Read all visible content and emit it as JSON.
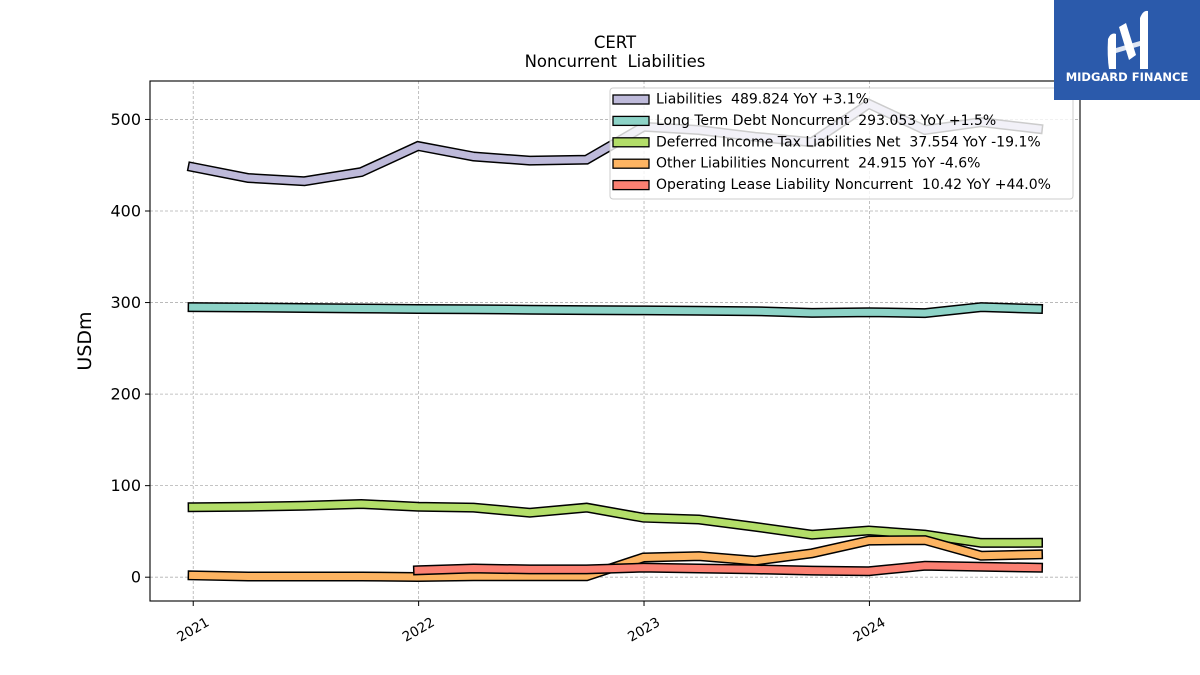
{
  "logo": {
    "wordmark": "MIDGARD FINANCE",
    "background_color": "#2b5aab"
  },
  "chart_data": {
    "type": "line",
    "title": "CERT",
    "subtitle": "Noncurrent  Liabilities",
    "xlabel": "",
    "ylabel": "USDm",
    "xlim": [
      "2020-10-23",
      "2024-12-07"
    ],
    "ylim": [
      -26,
      542
    ],
    "xticks": [
      "2021",
      "2022",
      "2023",
      "2024"
    ],
    "yticks": [
      0,
      100,
      200,
      300,
      400,
      500
    ],
    "grid": true,
    "legend": {
      "placement": "top-right",
      "yoy_label": "YoY"
    },
    "x": [
      "2020-12-31",
      "2021-03-31",
      "2021-06-30",
      "2021-09-30",
      "2021-12-31",
      "2022-03-31",
      "2022-06-30",
      "2022-09-30",
      "2022-12-31",
      "2023-03-31",
      "2023-06-30",
      "2023-09-30",
      "2023-12-31",
      "2024-03-31",
      "2024-06-30",
      "2024-09-30"
    ],
    "series": [
      {
        "name": "Liabilities",
        "latest": "489.824",
        "yoy": "+3.1%",
        "color": "#bebada",
        "values": [
          448.0,
          436.0,
          432.5,
          442.5,
          471.0,
          459.5,
          455.0,
          456.0,
          492.0,
          488.5,
          481.0,
          475.1,
          517.0,
          488.5,
          497.0,
          489.824
        ]
      },
      {
        "name": "Long Term Debt Noncurrent",
        "latest": "293.053",
        "yoy": "+1.5%",
        "color": "#8dd3c7",
        "values": [
          295.0,
          294.6,
          294.0,
          293.5,
          293.0,
          292.6,
          292.2,
          291.8,
          291.4,
          291.0,
          290.5,
          288.7,
          289.5,
          288.5,
          295.0,
          293.053
        ]
      },
      {
        "name": "Deferred Income Tax Liabilities Net",
        "latest": "37.554",
        "yoy": "-19.1%",
        "color": "#b3de69",
        "values": [
          76.5,
          77.0,
          78.0,
          80.0,
          77.0,
          76.0,
          70.5,
          76.0,
          65.0,
          63.0,
          55.0,
          46.4,
          51.0,
          46.5,
          37.5,
          37.554
        ]
      },
      {
        "name": "Other Liabilities Noncurrent",
        "latest": "24.915",
        "yoy": "-4.6%",
        "color": "#fdb462",
        "values": [
          2.0,
          0.8,
          0.8,
          0.8,
          0.2,
          1.0,
          1.0,
          1.0,
          21.5,
          23.0,
          18.0,
          26.1,
          40.0,
          40.5,
          23.5,
          24.915
        ]
      },
      {
        "name": "Operating Lease Liability Noncurrent",
        "latest": "10.42",
        "yoy": "+44.0%",
        "color": "#fb8072",
        "values": [
          null,
          null,
          null,
          null,
          7.5,
          9.5,
          8.5,
          8.5,
          10.5,
          9.5,
          8.5,
          7.24,
          6.5,
          12.5,
          11.5,
          10.42
        ]
      }
    ]
  }
}
